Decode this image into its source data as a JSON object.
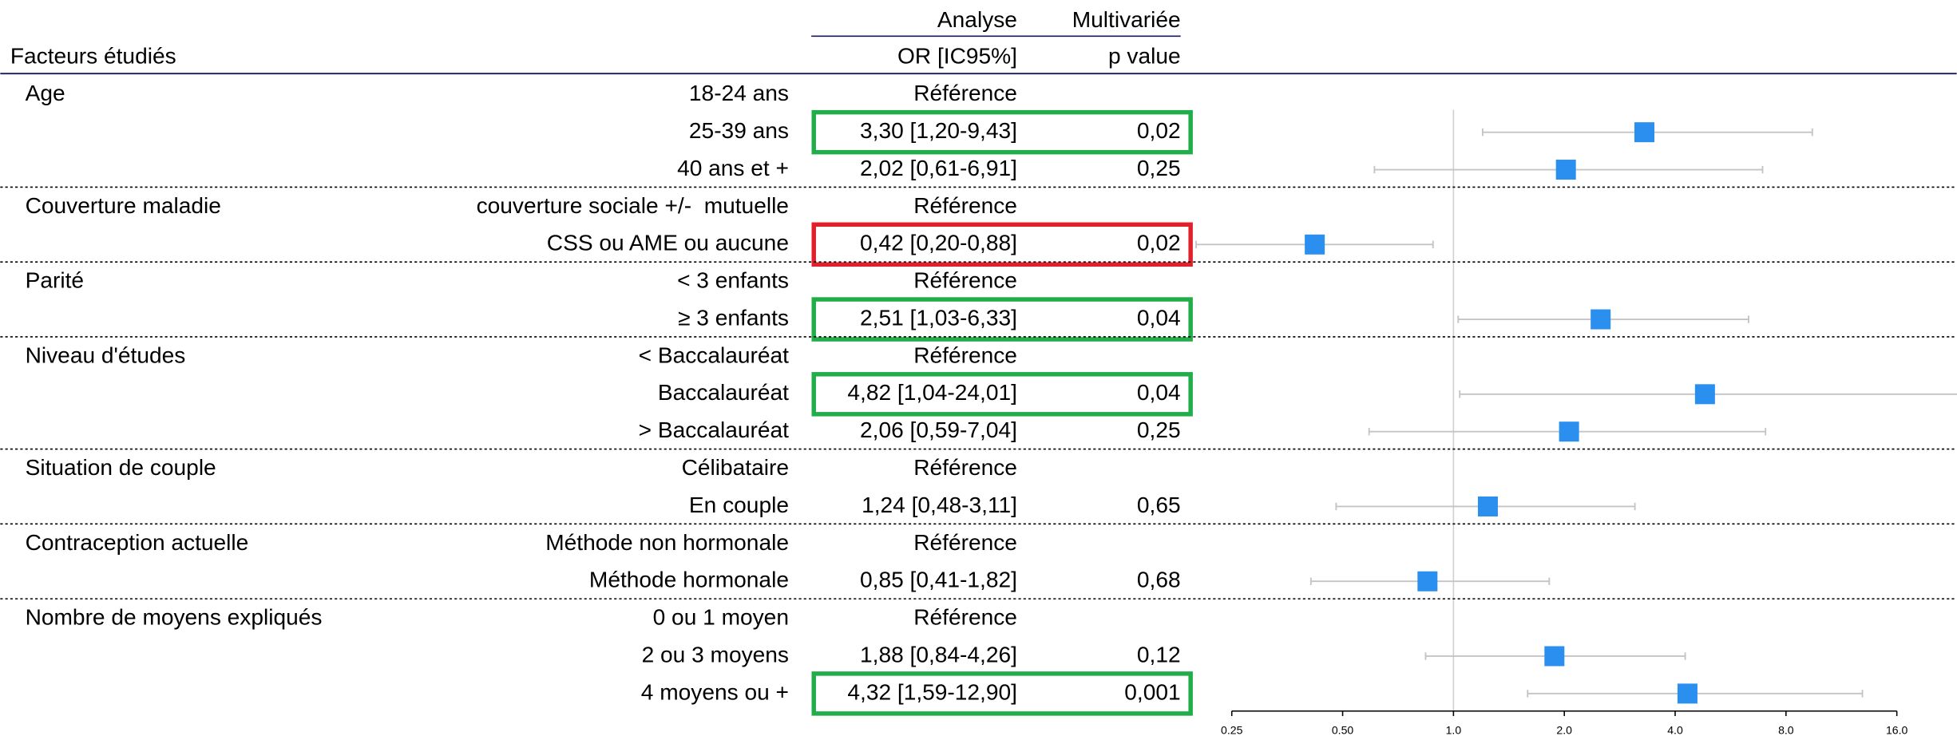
{
  "chart_data": {
    "type": "forest",
    "headers": {
      "analysis": "Analyse",
      "analysis_kind": "Multivariée",
      "factors": "Facteurs étudiés",
      "or": "OR [IC95%]",
      "p": "p value"
    },
    "xlog": true,
    "xlim": [
      0.25,
      16
    ],
    "xticks": [
      {
        "value": 0.25,
        "label": "0.25"
      },
      {
        "value": 0.5,
        "label": "0.50"
      },
      {
        "value": 1,
        "label": "1.0"
      },
      {
        "value": 2,
        "label": "2.0"
      },
      {
        "value": 4,
        "label": "4.0"
      },
      {
        "value": 8,
        "label": "8.0"
      },
      {
        "value": 16,
        "label": "16.0"
      }
    ],
    "reference_line": 1,
    "marker_color": "#2b8ff0",
    "groups": [
      {
        "factor": "Age",
        "levels": [
          {
            "label": "18-24 ans",
            "or_text": "Référence"
          },
          {
            "label": "25-39 ans",
            "or_text": "3,30 [1,20-9,43]",
            "p": "0,02",
            "or": 3.3,
            "ci": [
              1.2,
              9.43
            ],
            "box_color": "#22ad4b"
          },
          {
            "label": "40 ans et +",
            "or_text": "2,02 [0,61-6,91]",
            "p": "0,25",
            "or": 2.02,
            "ci": [
              0.61,
              6.91
            ]
          }
        ]
      },
      {
        "factor": "Couverture maladie",
        "levels": [
          {
            "label": "couverture sociale +/-  mutuelle",
            "or_text": "Référence"
          },
          {
            "label": "CSS ou AME ou aucune",
            "or_text": "0,42 [0,20-0,88]",
            "p": "0,02",
            "or": 0.42,
            "ci": [
              0.2,
              0.88
            ],
            "box_color": "#e2202b"
          }
        ]
      },
      {
        "factor": "Parité",
        "levels": [
          {
            "label": "< 3 enfants",
            "or_text": "Référence"
          },
          {
            "label": "≥ 3 enfants",
            "or_text": "2,51 [1,03-6,33]",
            "p": "0,04",
            "or": 2.51,
            "ci": [
              1.03,
              6.33
            ],
            "box_color": "#22ad4b"
          }
        ]
      },
      {
        "factor": "Niveau d'études",
        "levels": [
          {
            "label": "< Baccalauréat",
            "or_text": "Référence"
          },
          {
            "label": "Baccalauréat",
            "or_text": "4,82 [1,04-24,01]",
            "p": "0,04",
            "or": 4.82,
            "ci": [
              1.04,
              24.01
            ],
            "box_color": "#22ad4b"
          },
          {
            "label": "> Baccalauréat",
            "or_text": "2,06 [0,59-7,04]",
            "p": "0,25",
            "or": 2.06,
            "ci": [
              0.59,
              7.04
            ]
          }
        ]
      },
      {
        "factor": "Situation de couple",
        "levels": [
          {
            "label": "Célibataire",
            "or_text": "Référence"
          },
          {
            "label": "En couple",
            "or_text": "1,24 [0,48-3,11]",
            "p": "0,65",
            "or": 1.24,
            "ci": [
              0.48,
              3.11
            ]
          }
        ]
      },
      {
        "factor": "Contraception actuelle",
        "levels": [
          {
            "label": "Méthode non hormonale",
            "or_text": "Référence"
          },
          {
            "label": "Méthode hormonale",
            "or_text": "0,85 [0,41-1,82]",
            "p": "0,68",
            "or": 0.85,
            "ci": [
              0.41,
              1.82
            ]
          }
        ]
      },
      {
        "factor": "Nombre de moyens expliqués",
        "levels": [
          {
            "label": "0 ou 1 moyen",
            "or_text": "Référence"
          },
          {
            "label": "2 ou 3 moyens",
            "or_text": "1,88 [0,84-4,26]",
            "p": "0,12",
            "or": 1.88,
            "ci": [
              0.84,
              4.26
            ]
          },
          {
            "label": "4 moyens ou +",
            "or_text": "4,32 [1,59-12,90]",
            "p": "0,001",
            "or": 4.32,
            "ci": [
              1.59,
              12.9
            ],
            "box_color": "#22ad4b"
          }
        ]
      }
    ]
  }
}
